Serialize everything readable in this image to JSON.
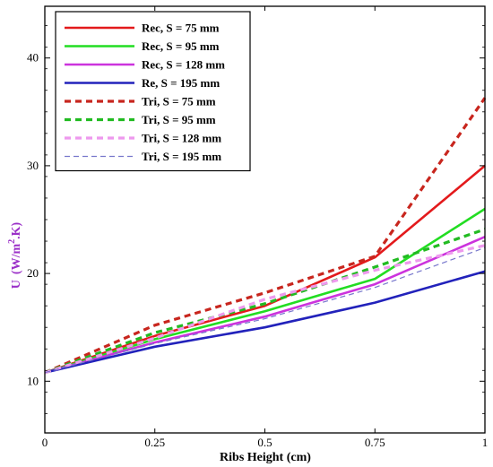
{
  "chart_data": {
    "type": "line",
    "title": "",
    "xlabel": "Ribs Height (cm)",
    "ylabel_main": "U",
    "ylabel_unit": "(W/m",
    "ylabel_sup": "2",
    "ylabel_tail": ".K)",
    "x": [
      0,
      0.25,
      0.5,
      0.75,
      1
    ],
    "x_tick_labels": [
      "0",
      "0.25",
      "0.5",
      "0.75",
      "1"
    ],
    "y_ticks": [
      10,
      20,
      30,
      40
    ],
    "y_tick_labels": [
      "10",
      "20",
      "30",
      "40"
    ],
    "xlim": [
      0,
      1
    ],
    "ylim": [
      5.2,
      44.8
    ],
    "grid": false,
    "legend_position": "top-left",
    "series": [
      {
        "name": "Rec, S = 75 mm",
        "color": "#e31a1c",
        "style": "solid",
        "values": [
          10.8,
          14.2,
          17.0,
          21.5,
          30.0
        ]
      },
      {
        "name": "Rec, S = 95 mm",
        "color": "#22dd22",
        "style": "solid",
        "values": [
          10.8,
          13.9,
          16.5,
          19.5,
          26.0
        ]
      },
      {
        "name": "Rec, S = 128 mm",
        "color": "#cc33dd",
        "style": "solid",
        "values": [
          10.8,
          13.6,
          16.0,
          19.0,
          23.4
        ]
      },
      {
        "name": "Re, S = 195 mm",
        "color": "#2222bb",
        "style": "solid",
        "values": [
          10.8,
          13.2,
          15.0,
          17.3,
          20.2
        ]
      },
      {
        "name": "Tri, S = 75 mm",
        "color": "#c8261e",
        "style": "dash",
        "values": [
          10.8,
          15.2,
          18.2,
          21.6,
          36.3
        ]
      },
      {
        "name": "Tri, S = 95 mm",
        "color": "#22bb22",
        "style": "dash",
        "values": [
          10.8,
          14.5,
          17.2,
          20.6,
          24.1
        ]
      },
      {
        "name": "Tri, S = 128 mm",
        "color": "#ee99ee",
        "style": "dash",
        "values": [
          10.8,
          14.0,
          17.6,
          20.3,
          22.6
        ]
      },
      {
        "name": "Tri, S = 195 mm",
        "color": "#7777cc",
        "style": "thindash",
        "values": [
          10.8,
          13.5,
          15.8,
          18.7,
          22.4
        ]
      }
    ]
  }
}
